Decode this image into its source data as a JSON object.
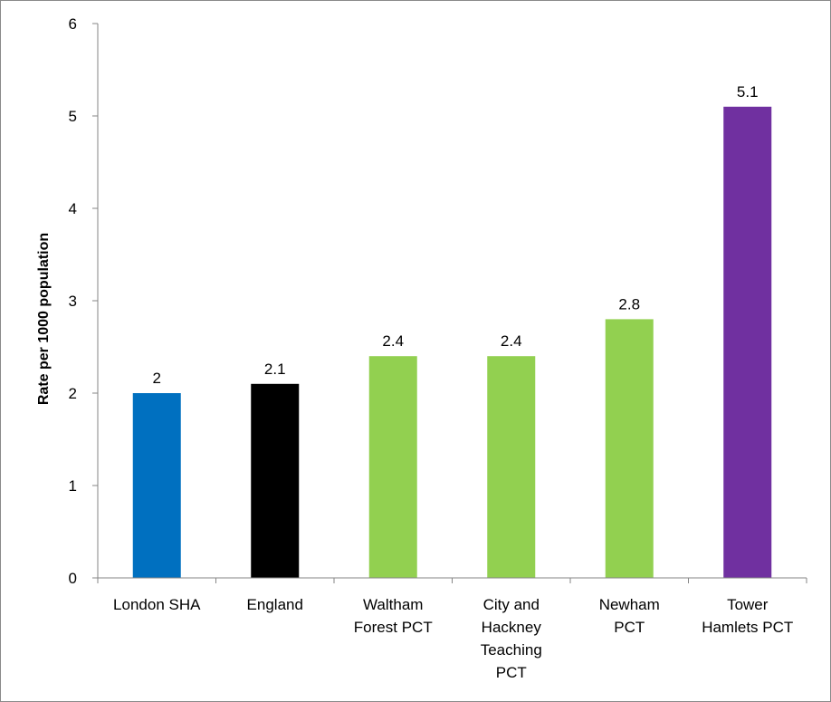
{
  "chart_data": {
    "type": "bar",
    "title": "",
    "xlabel": "",
    "ylabel": "Rate per 1000 population",
    "ylim": [
      0,
      6
    ],
    "yticks": [
      0,
      1,
      2,
      3,
      4,
      5,
      6
    ],
    "grid": false,
    "legend": "none",
    "categories": [
      [
        "London SHA"
      ],
      [
        "England"
      ],
      [
        "Waltham",
        "Forest PCT"
      ],
      [
        "City and",
        "Hackney",
        "Teaching",
        "PCT"
      ],
      [
        "Newham",
        "PCT"
      ],
      [
        "Tower",
        "Hamlets PCT"
      ]
    ],
    "values": [
      2,
      2.1,
      2.4,
      2.4,
      2.8,
      5.1
    ],
    "data_labels": [
      "2",
      "2.1",
      "2.4",
      "2.4",
      "2.8",
      "5.1"
    ],
    "colors": [
      "#0070C0",
      "#000000",
      "#92D050",
      "#92D050",
      "#92D050",
      "#7030A0"
    ]
  }
}
